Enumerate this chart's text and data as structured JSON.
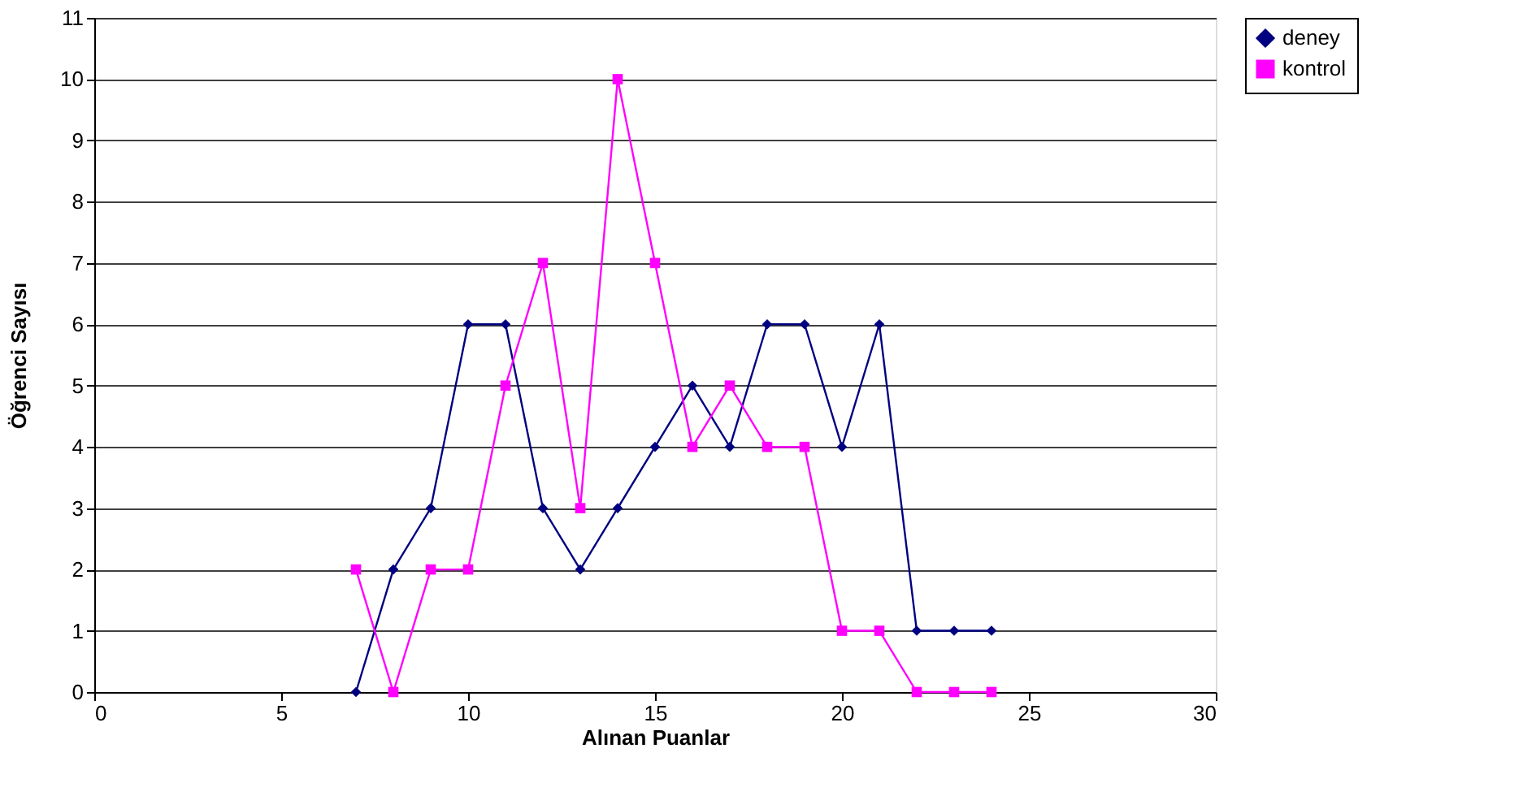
{
  "chart_data": {
    "type": "line",
    "xlabel": "Alınan Puanlar",
    "ylabel": "Öğrenci Sayısı",
    "x": [
      7,
      8,
      9,
      10,
      11,
      12,
      13,
      14,
      15,
      16,
      17,
      18,
      19,
      20,
      21,
      22,
      23,
      24
    ],
    "series": [
      {
        "name": "deney",
        "color": "#000080",
        "marker": "diamond",
        "values": [
          0,
          2,
          3,
          6,
          6,
          3,
          2,
          3,
          4,
          5,
          4,
          6,
          6,
          4,
          6,
          1,
          1,
          1
        ]
      },
      {
        "name": "kontrol",
        "color": "#ff00ff",
        "marker": "square",
        "values": [
          2,
          0,
          2,
          2,
          5,
          7,
          3,
          10,
          7,
          4,
          5,
          4,
          4,
          1,
          1,
          0,
          0,
          0
        ]
      }
    ],
    "xlim": [
      0,
      30
    ],
    "xticks": [
      0,
      5,
      10,
      15,
      20,
      25,
      30
    ],
    "ylim": [
      0,
      11
    ],
    "yticks": [
      0,
      1,
      2,
      3,
      4,
      5,
      6,
      7,
      8,
      9,
      10,
      11
    ],
    "grid": "y",
    "legend": "right",
    "line_style": "solid"
  }
}
